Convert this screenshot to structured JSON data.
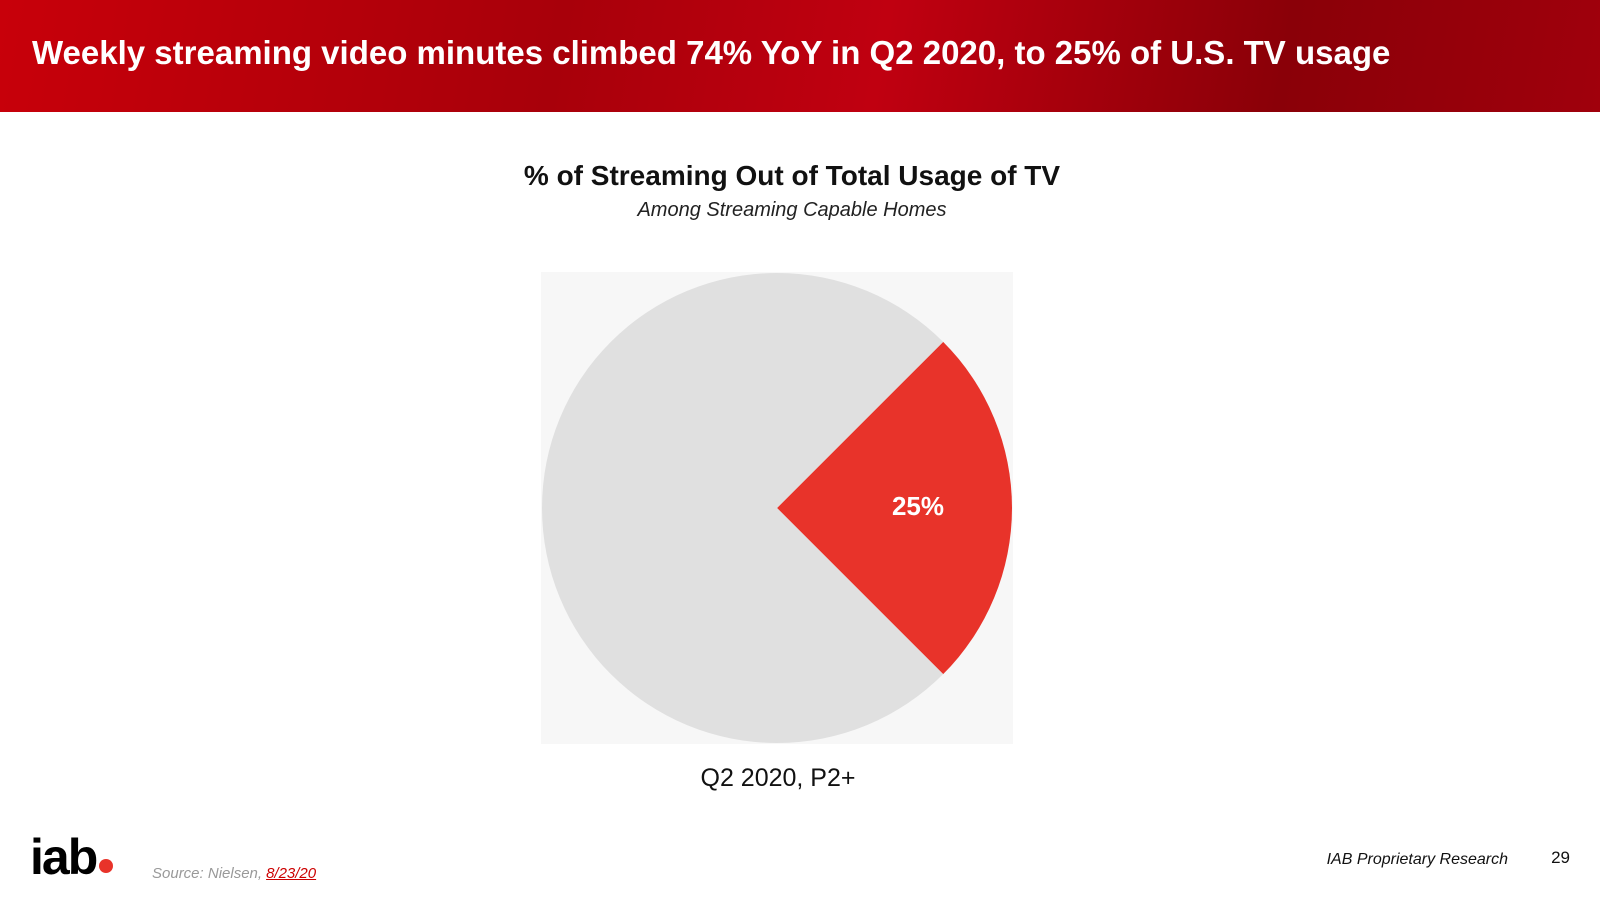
{
  "header": {
    "title": "Weekly streaming video minutes climbed 74% YoY in Q2 2020, to 25% of U.S. TV usage"
  },
  "chart_data": {
    "type": "pie",
    "title": "% of Streaming Out of Total Usage of TV",
    "subtitle": "Among Streaming Capable Homes",
    "xlabel": "Q2 2020, P2+",
    "categories": [
      null,
      null
    ],
    "values": [
      25,
      75
    ],
    "value_labels": [
      "25%",
      null
    ],
    "colors": [
      "#e8332a",
      "#e0e0e0"
    ]
  },
  "footer": {
    "logo": "iab",
    "source": "Source: Nielsen,",
    "source_date": "8/23/20",
    "note": "IAB Proprietary Research",
    "page": "29"
  }
}
